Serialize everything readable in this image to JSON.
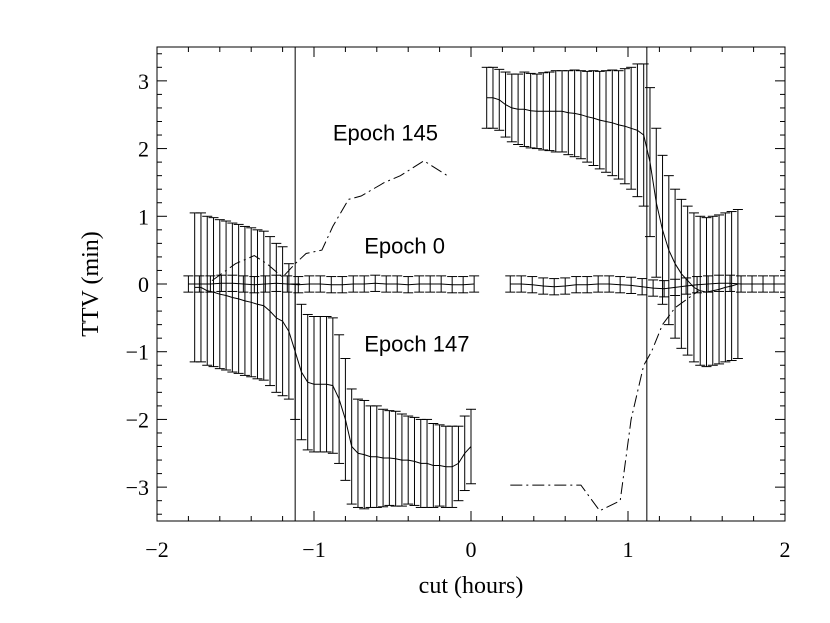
{
  "chart_data": {
    "type": "line",
    "title": "",
    "xlabel": "cut (hours)",
    "ylabel": "TTV (min)",
    "xlim": [
      -2,
      2
    ],
    "ylim": [
      -3.5,
      3.5
    ],
    "x_ticks": [
      -2,
      -1,
      0,
      1,
      2
    ],
    "y_ticks": [
      -3,
      -2,
      -1,
      0,
      1,
      2,
      3
    ],
    "x_tick_labels": [
      "−2",
      "−1",
      "0",
      "1",
      "2"
    ],
    "y_tick_labels": [
      "−3",
      "−2",
      "−1",
      "0",
      "1",
      "2",
      "3"
    ],
    "grid": false,
    "vertical_lines": [
      -1.12,
      1.12
    ],
    "annotations": [
      {
        "text": "Epoch 145",
        "x": -0.88,
        "y": 2.12
      },
      {
        "text": "Epoch 0",
        "x": -0.68,
        "y": 0.45
      },
      {
        "text": "Epoch 147",
        "x": -0.68,
        "y": -1.0
      }
    ],
    "series": [
      {
        "name": "Epoch 0",
        "style": "solid",
        "errorbars": true,
        "segments": [
          {
            "x": [
              -1.8,
              -1.73,
              -1.66,
              -1.59,
              -1.52,
              -1.45,
              -1.38,
              -1.31,
              -1.24,
              -1.17,
              -1.1,
              -1.03,
              -0.96,
              -0.89,
              -0.82,
              -0.75,
              -0.68,
              -0.61,
              -0.54,
              -0.47,
              -0.4,
              -0.33,
              -0.26,
              -0.19,
              -0.12,
              -0.05,
              0.02
            ],
            "y": [
              0.0,
              0.0,
              0.0,
              0.01,
              0.01,
              0.0,
              -0.01,
              0.0,
              0.01,
              0.0,
              -0.01,
              0.0,
              0.0,
              -0.01,
              -0.01,
              0.0,
              0.0,
              0.01,
              0.0,
              0.0,
              -0.01,
              0.0,
              0.0,
              0.0,
              -0.01,
              -0.01,
              0.0
            ],
            "err": [
              0.12,
              0.12,
              0.12,
              0.12,
              0.12,
              0.12,
              0.12,
              0.12,
              0.12,
              0.12,
              0.12,
              0.12,
              0.12,
              0.12,
              0.12,
              0.12,
              0.12,
              0.12,
              0.12,
              0.12,
              0.12,
              0.12,
              0.12,
              0.12,
              0.12,
              0.12,
              0.12
            ]
          },
          {
            "x": [
              0.25,
              0.32,
              0.39,
              0.46,
              0.53,
              0.6,
              0.67,
              0.74,
              0.81,
              0.88,
              0.95,
              1.02,
              1.09,
              1.16,
              1.23,
              1.3,
              1.37,
              1.44,
              1.51,
              1.58,
              1.65,
              1.72,
              1.79,
              1.86,
              1.93,
              2.0
            ],
            "y": [
              0.0,
              0.0,
              -0.01,
              -0.03,
              -0.04,
              -0.03,
              -0.01,
              -0.01,
              0.0,
              0.0,
              -0.01,
              -0.02,
              -0.04,
              -0.06,
              -0.07,
              -0.05,
              -0.03,
              -0.01,
              0.0,
              0.01,
              0.01,
              0.0,
              0.0,
              0.0,
              0.0,
              0.0
            ],
            "err": [
              0.12,
              0.12,
              0.12,
              0.12,
              0.12,
              0.12,
              0.12,
              0.12,
              0.12,
              0.12,
              0.12,
              0.12,
              0.12,
              0.12,
              0.12,
              0.12,
              0.12,
              0.12,
              0.12,
              0.12,
              0.12,
              0.12,
              0.12,
              0.12,
              0.12,
              0.12
            ]
          }
        ]
      },
      {
        "name": "Epoch 147",
        "style": "solid",
        "errorbars": true,
        "segments": [
          {
            "x": [
              -1.76,
              -1.72,
              -1.68,
              -1.64,
              -1.6,
              -1.56,
              -1.52,
              -1.48,
              -1.44,
              -1.4,
              -1.36,
              -1.32,
              -1.28,
              -1.24,
              -1.2,
              -1.16,
              -1.12,
              -1.08,
              -1.04,
              -1.0,
              -0.96,
              -0.92,
              -0.88,
              -0.84,
              -0.8,
              -0.76,
              -0.72,
              -0.68,
              -0.64,
              -0.6,
              -0.56,
              -0.52,
              -0.48,
              -0.44,
              -0.4,
              -0.36,
              -0.32,
              -0.28,
              -0.24,
              -0.2,
              -0.16,
              -0.12,
              -0.08,
              -0.04,
              0.0
            ],
            "y": [
              -0.05,
              -0.05,
              -0.1,
              -0.12,
              -0.15,
              -0.17,
              -0.2,
              -0.22,
              -0.25,
              -0.27,
              -0.3,
              -0.32,
              -0.4,
              -0.5,
              -0.55,
              -0.7,
              -1.0,
              -1.3,
              -1.45,
              -1.48,
              -1.48,
              -1.48,
              -1.5,
              -1.7,
              -2.0,
              -2.4,
              -2.5,
              -2.52,
              -2.55,
              -2.55,
              -2.57,
              -2.57,
              -2.58,
              -2.6,
              -2.6,
              -2.62,
              -2.65,
              -2.65,
              -2.68,
              -2.68,
              -2.7,
              -2.7,
              -2.65,
              -2.5,
              -2.4
            ],
            "err": [
              1.1,
              1.1,
              1.1,
              1.1,
              1.1,
              1.1,
              1.1,
              1.1,
              1.1,
              1.1,
              1.1,
              1.1,
              1.1,
              1.1,
              1.1,
              1.0,
              1.0,
              1.0,
              1.0,
              1.0,
              1.0,
              1.0,
              1.0,
              0.95,
              0.9,
              0.85,
              0.8,
              0.8,
              0.75,
              0.75,
              0.72,
              0.7,
              0.7,
              0.68,
              0.65,
              0.65,
              0.65,
              0.65,
              0.62,
              0.6,
              0.6,
              0.6,
              0.55,
              0.55,
              0.55
            ]
          },
          {
            "x": [
              0.1,
              0.14,
              0.18,
              0.22,
              0.26,
              0.3,
              0.34,
              0.38,
              0.42,
              0.46,
              0.5,
              0.54,
              0.58,
              0.62,
              0.66,
              0.7,
              0.74,
              0.78,
              0.82,
              0.86,
              0.9,
              0.94,
              0.98,
              1.02,
              1.06,
              1.1,
              1.14,
              1.18,
              1.22,
              1.26,
              1.3,
              1.34,
              1.38,
              1.42,
              1.46,
              1.5,
              1.54,
              1.58,
              1.62,
              1.66,
              1.7
            ],
            "y": [
              2.75,
              2.75,
              2.72,
              2.65,
              2.6,
              2.58,
              2.58,
              2.56,
              2.55,
              2.55,
              2.55,
              2.55,
              2.55,
              2.53,
              2.52,
              2.5,
              2.47,
              2.45,
              2.42,
              2.4,
              2.38,
              2.35,
              2.33,
              2.3,
              2.27,
              2.2,
              1.8,
              1.2,
              0.8,
              0.5,
              0.3,
              0.15,
              0.05,
              -0.05,
              -0.1,
              -0.12,
              -0.1,
              -0.08,
              -0.05,
              -0.03,
              0.0
            ],
            "err": [
              0.45,
              0.45,
              0.45,
              0.48,
              0.5,
              0.52,
              0.55,
              0.55,
              0.55,
              0.57,
              0.58,
              0.6,
              0.6,
              0.62,
              0.64,
              0.65,
              0.67,
              0.7,
              0.72,
              0.75,
              0.78,
              0.8,
              0.85,
              0.9,
              0.98,
              1.05,
              1.1,
              1.1,
              1.1,
              1.1,
              1.1,
              1.1,
              1.1,
              1.1,
              1.1,
              1.1,
              1.1,
              1.1,
              1.1,
              1.1,
              1.1
            ]
          }
        ]
      },
      {
        "name": "Epoch 145",
        "style": "dashdot",
        "errorbars": false,
        "segments": [
          {
            "x": [
              -1.65,
              -1.5,
              -1.38,
              -1.3,
              -1.2,
              -1.12,
              -1.05,
              -0.95,
              -0.88,
              -0.78,
              -0.7,
              -0.55,
              -0.45,
              -0.3,
              -0.15
            ],
            "y": [
              0.05,
              0.3,
              0.42,
              0.3,
              0.1,
              0.3,
              0.45,
              0.5,
              0.85,
              1.25,
              1.3,
              1.5,
              1.6,
              1.82,
              1.6
            ]
          },
          {
            "x": [
              0.25,
              0.35,
              0.5,
              0.7,
              0.82,
              0.95,
              1.02,
              1.1,
              1.15,
              1.22,
              1.3,
              1.45
            ],
            "y": [
              -2.97,
              -2.97,
              -2.97,
              -2.97,
              -3.35,
              -3.2,
              -2.0,
              -1.2,
              -1.0,
              -0.6,
              -0.35,
              -0.1
            ]
          }
        ]
      }
    ]
  }
}
